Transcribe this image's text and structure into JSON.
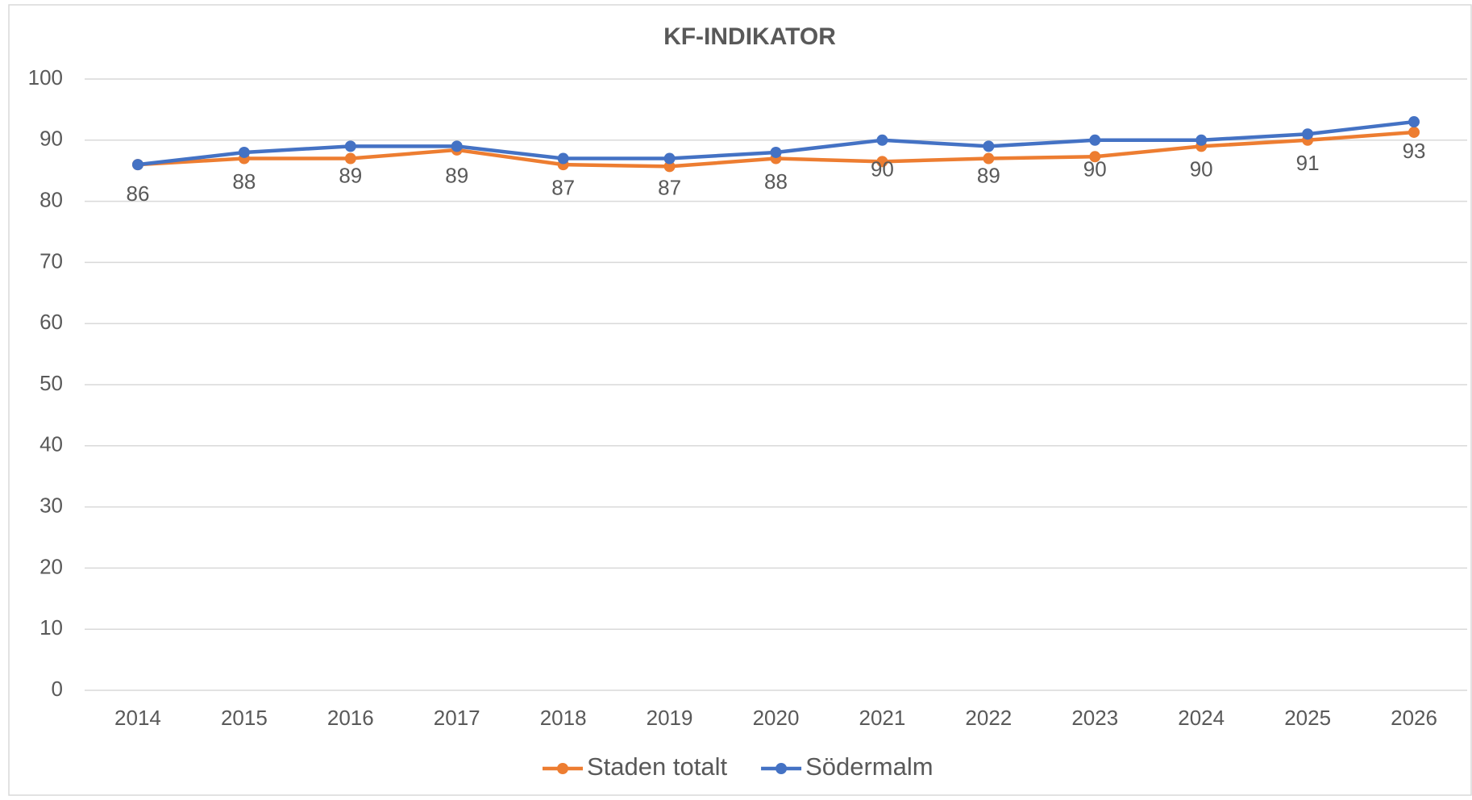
{
  "chart_data": {
    "type": "line",
    "title": "KF-INDIKATOR",
    "categories": [
      "2014",
      "2015",
      "2016",
      "2017",
      "2018",
      "2019",
      "2020",
      "2021",
      "2022",
      "2023",
      "2024",
      "2025",
      "2026"
    ],
    "series": [
      {
        "name": "Staden totalt",
        "color": "#ed7d31",
        "values": [
          86,
          87,
          87,
          88.4,
          86,
          85.7,
          87,
          86.5,
          87,
          87.3,
          89,
          90,
          91.3
        ]
      },
      {
        "name": "Södermalm",
        "color": "#4472c4",
        "values": [
          86,
          88,
          89,
          89,
          87,
          87,
          88,
          90,
          89,
          90,
          90,
          91,
          93
        ]
      }
    ],
    "label_series": 1,
    "ylim": [
      0,
      100
    ],
    "yticks": [
      0,
      10,
      20,
      30,
      40,
      50,
      60,
      70,
      80,
      90,
      100
    ],
    "grid": true,
    "legend": "bottom"
  }
}
